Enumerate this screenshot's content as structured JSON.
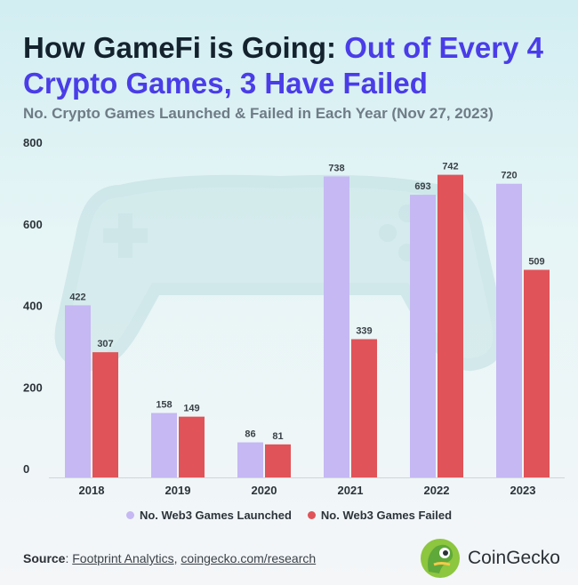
{
  "title_part1": "How GameFi is Going: ",
  "title_part2": "Out of Every 4 Crypto Games, 3 Have Failed",
  "subtitle": "No. Crypto Games Launched & Failed in Each Year (Nov 27, 2023)",
  "source_label": "Source",
  "source_sep1": ": ",
  "source_link1": "Footprint Analytics",
  "source_sep2": ", ",
  "source_link2": "coingecko.com/research",
  "brand_name": "CoinGecko",
  "colors": {
    "launched": "#c5b8f3",
    "failed": "#e05358",
    "accent": "#4a3de8"
  },
  "chart_data": {
    "type": "bar",
    "categories": [
      "2018",
      "2019",
      "2020",
      "2021",
      "2022",
      "2023"
    ],
    "series": [
      {
        "name": "No. Web3 Games Launched",
        "values": [
          422,
          158,
          86,
          738,
          693,
          720
        ]
      },
      {
        "name": "No. Web3 Games Failed",
        "values": [
          307,
          149,
          81,
          339,
          742,
          509
        ]
      }
    ],
    "ylim": [
      0,
      800
    ],
    "yticks": [
      0,
      200,
      400,
      600,
      800
    ],
    "legend": "bottom",
    "grid": false
  }
}
